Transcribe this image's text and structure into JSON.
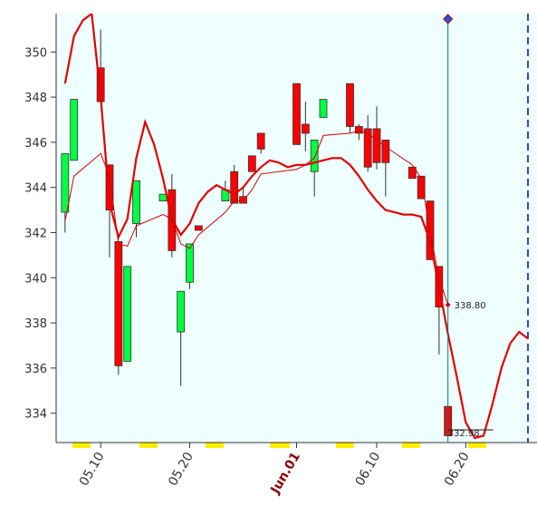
{
  "chart_data": {
    "type": "candlestick",
    "x": [
      "05.06",
      "05.07",
      "05.10",
      "05.11",
      "05.12",
      "05.13",
      "05.14",
      "05.17",
      "05.18",
      "05.19",
      "05.20",
      "05.21",
      "05.24",
      "05.25",
      "05.26",
      "05.27",
      "05.28",
      "06.01",
      "06.02",
      "06.03",
      "06.04",
      "06.07",
      "06.08",
      "06.09",
      "06.10",
      "06.11",
      "06.14",
      "06.15",
      "06.16",
      "06.17",
      "06.18"
    ],
    "open": [
      342.9,
      345.2,
      349.3,
      345.0,
      341.6,
      336.3,
      342.4,
      343.4,
      343.9,
      337.6,
      339.8,
      342.3,
      343.4,
      344.7,
      343.6,
      345.4,
      346.4,
      348.6,
      346.8,
      344.7,
      347.1,
      348.6,
      346.7,
      346.6,
      346.6,
      346.1,
      344.9,
      344.5,
      343.4,
      340.5,
      334.3
    ],
    "high": [
      345.5,
      347.9,
      351.0,
      345.0,
      341.6,
      340.5,
      344.3,
      343.7,
      344.6,
      339.4,
      341.5,
      342.3,
      344.3,
      345.0,
      344.0,
      345.4,
      346.4,
      348.6,
      347.8,
      346.1,
      347.9,
      348.6,
      346.8,
      347.2,
      347.6,
      346.1,
      344.9,
      344.5,
      343.4,
      340.5,
      334.3
    ],
    "low": [
      342.0,
      345.2,
      347.8,
      340.9,
      335.7,
      336.3,
      341.8,
      343.4,
      340.9,
      335.2,
      339.5,
      342.1,
      343.4,
      343.3,
      343.3,
      344.7,
      345.5,
      345.9,
      345.6,
      343.6,
      347.1,
      346.4,
      346.1,
      344.7,
      344.8,
      343.6,
      344.4,
      343.5,
      340.8,
      336.6,
      333.0
    ],
    "close": [
      345.5,
      347.9,
      347.8,
      343.0,
      336.1,
      340.5,
      344.3,
      343.7,
      341.2,
      339.4,
      341.5,
      342.1,
      343.9,
      343.3,
      343.3,
      344.7,
      345.7,
      345.9,
      346.4,
      346.1,
      347.9,
      346.7,
      346.4,
      344.9,
      345.1,
      345.1,
      344.4,
      343.5,
      340.8,
      338.7,
      333.0
    ],
    "up_color": "#00ff40",
    "down_color": "#ff0000",
    "lines": [
      {
        "color": "#e00000",
        "width": 2.2,
        "x": [
          "05.06",
          "05.07",
          "05.08",
          "05.09",
          "05.10",
          "05.11",
          "05.12",
          "05.13",
          "05.14",
          "05.15",
          "05.16",
          "05.17",
          "05.18",
          "05.19",
          "05.20",
          "05.21",
          "05.22",
          "05.23",
          "05.24",
          "05.25",
          "05.26",
          "05.27",
          "05.28",
          "05.29",
          "05.30",
          "05.31",
          "06.01",
          "06.02",
          "06.03",
          "06.04",
          "06.05",
          "06.06",
          "06.07",
          "06.08",
          "06.09",
          "06.10",
          "06.11",
          "06.12",
          "06.13",
          "06.14",
          "06.15",
          "06.16",
          "06.17",
          "06.18",
          "06.19",
          "06.20",
          "06.21",
          "06.22",
          "06.23",
          "06.24",
          "06.25",
          "06.26",
          "06.27"
        ],
        "values": [
          348.6,
          350.7,
          351.4,
          351.7,
          348.0,
          343.3,
          341.8,
          342.6,
          345.3,
          346.9,
          345.9,
          344.4,
          342.6,
          341.9,
          342.4,
          343.3,
          343.8,
          344.1,
          343.9,
          343.7,
          344.0,
          344.5,
          344.9,
          345.2,
          345.1,
          344.9,
          345.0,
          345.0,
          345.1,
          345.2,
          345.3,
          345.3,
          345.0,
          344.5,
          343.9,
          343.4,
          343.0,
          342.9,
          342.8,
          342.8,
          342.7,
          341.6,
          339.6,
          337.5,
          335.6,
          333.6,
          332.9,
          333.0,
          334.4,
          336.0,
          337.1,
          337.6,
          337.3
        ]
      },
      {
        "color": "#d00000",
        "width": 1,
        "x": [
          "05.06",
          "05.07",
          "05.10",
          "05.11",
          "05.12",
          "05.13",
          "05.14",
          "05.17",
          "05.18",
          "05.19",
          "05.20",
          "05.21",
          "05.24",
          "05.25",
          "05.26",
          "05.27",
          "05.28",
          "06.01",
          "06.02",
          "06.03",
          "06.04",
          "06.07",
          "06.08",
          "06.09",
          "06.10",
          "06.11",
          "06.14",
          "06.15",
          "06.16",
          "06.17",
          "06.18"
        ],
        "values": [
          342.5,
          344.5,
          345.5,
          344.5,
          341.5,
          341.4,
          342.3,
          342.8,
          342.6,
          341.5,
          341.3,
          341.9,
          342.9,
          343.4,
          343.4,
          343.9,
          344.6,
          344.8,
          345.0,
          345.3,
          346.3,
          346.4,
          346.5,
          346.4,
          346.1,
          345.8,
          345.0,
          344.4,
          342.0,
          340.0,
          338.8
        ]
      }
    ],
    "annotations": [
      {
        "text": "338.80",
        "x": "06.18",
        "y": 338.8
      },
      {
        "text": "332.98",
        "x": "06.18",
        "y": 332.98
      }
    ],
    "xlim": [
      "05.05",
      "06.28"
    ],
    "xticks": [
      {
        "value": "05.10",
        "label": "05.10"
      },
      {
        "value": "05.20",
        "label": "05.20"
      },
      {
        "value": "06.01",
        "label": "Jun.01"
      },
      {
        "value": "06.10",
        "label": "06.10"
      },
      {
        "value": "06.20",
        "label": "06.20"
      }
    ],
    "ylim": [
      332.7,
      351.7
    ],
    "yticks": [
      334,
      336,
      338,
      340,
      342,
      344,
      346,
      348,
      350
    ]
  }
}
